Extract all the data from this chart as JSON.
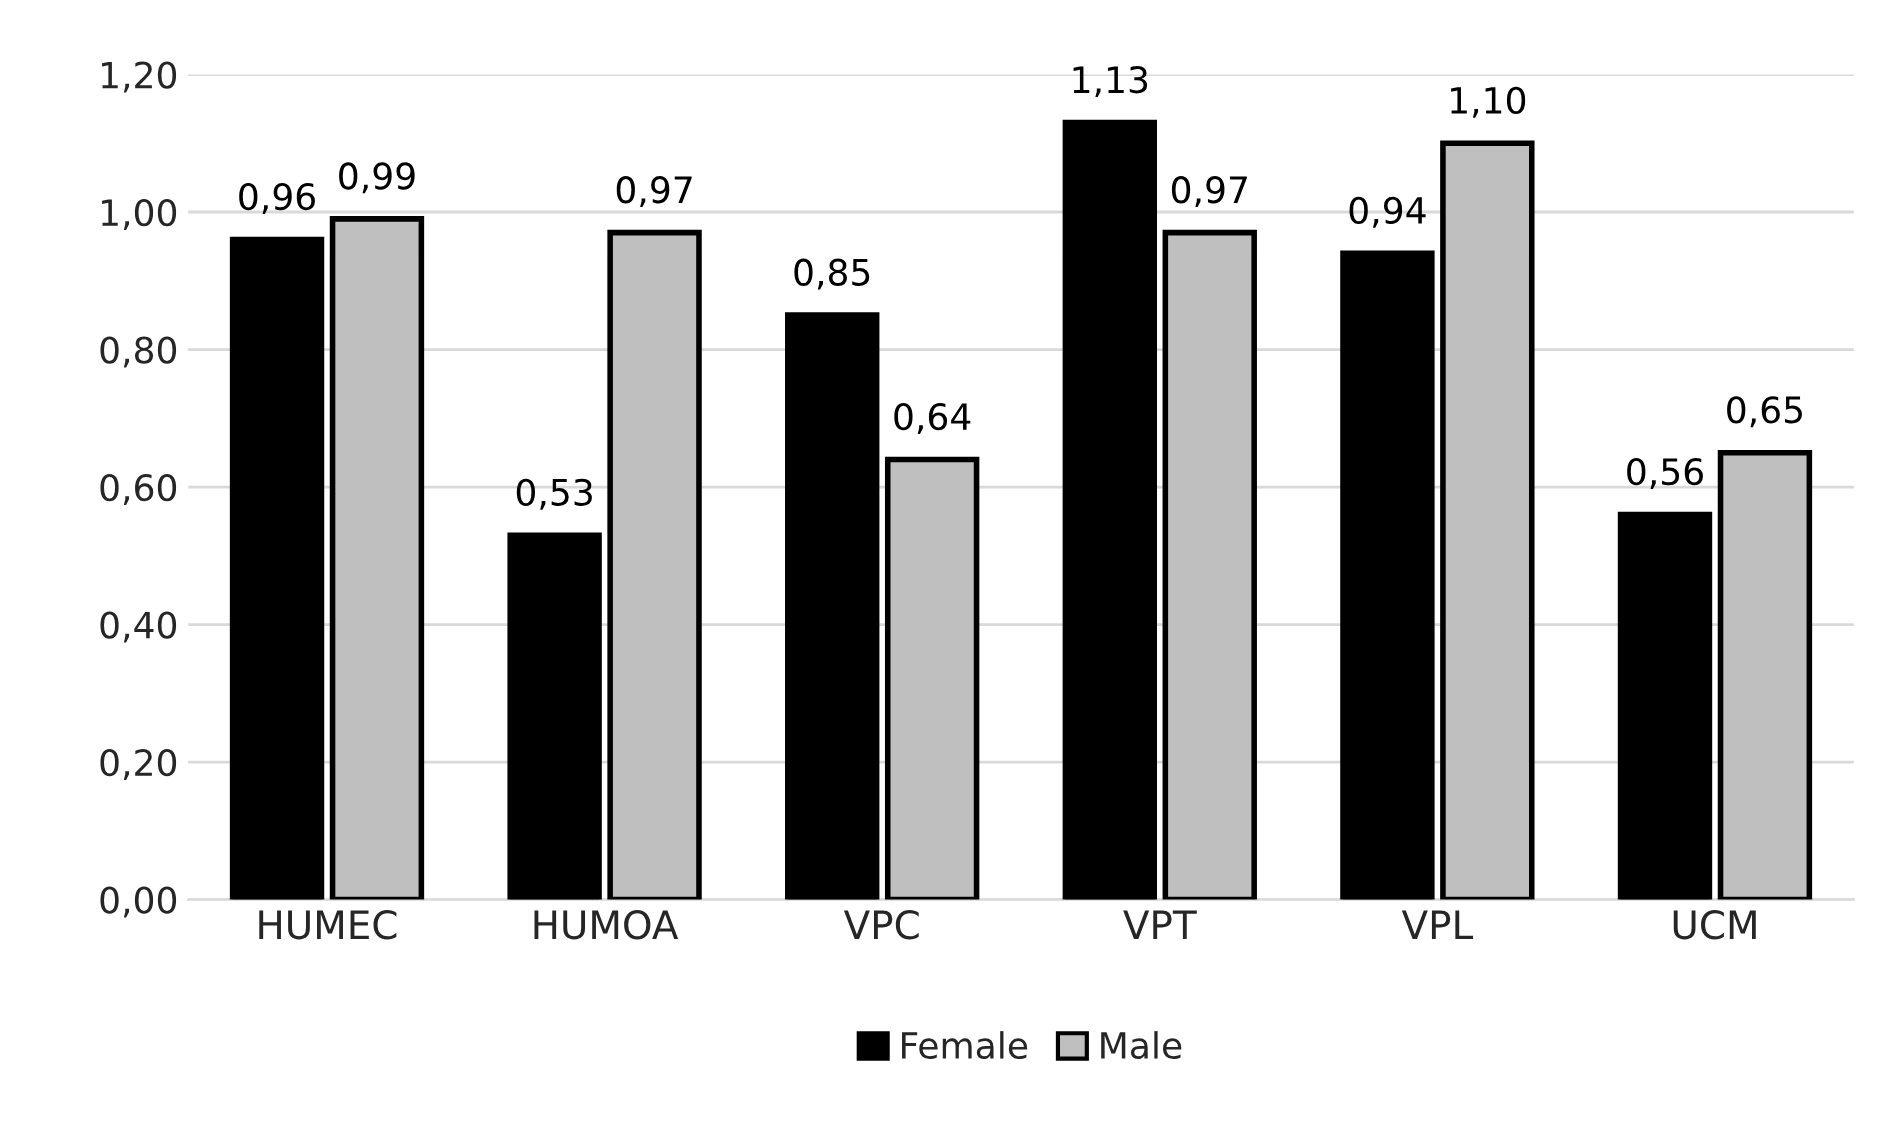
{
  "chart_data": {
    "type": "bar",
    "categories": [
      "HUMEC",
      "HUMOA",
      "VPC",
      "VPT",
      "VPL",
      "UCM"
    ],
    "series": [
      {
        "name": "Female",
        "color": "#000000",
        "values": [
          0.96,
          0.53,
          0.85,
          1.13,
          0.94,
          0.56
        ],
        "value_labels": [
          "0,96",
          "0,53",
          "0,85",
          "1,13",
          "0,94",
          "0,56"
        ]
      },
      {
        "name": "Male",
        "color": "#bfbfbf",
        "values": [
          0.99,
          0.97,
          0.64,
          0.97,
          1.1,
          0.65
        ],
        "value_labels": [
          "0,99",
          "0,97",
          "0,64",
          "0,97",
          "1,10",
          "0,65"
        ]
      }
    ],
    "ylim": [
      0,
      1.2
    ],
    "yticks": [
      {
        "value": 0,
        "label": "0,00"
      },
      {
        "value": 0.2,
        "label": "0,20"
      },
      {
        "value": 0.4,
        "label": "0,40"
      },
      {
        "value": 0.6,
        "label": "0,60"
      },
      {
        "value": 0.8,
        "label": "0,80"
      },
      {
        "value": 1.0,
        "label": "1,00"
      },
      {
        "value": 1.2,
        "label": "1,20"
      }
    ],
    "grid": "y",
    "legend": "bottom"
  }
}
